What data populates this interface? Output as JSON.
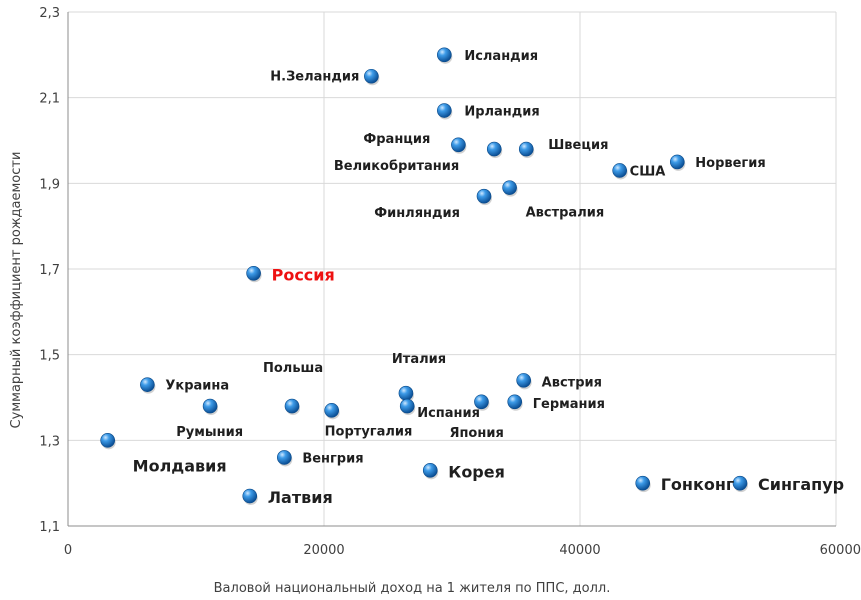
{
  "chart_data": {
    "type": "scatter",
    "title": "",
    "xlabel": "Валовой национальный доход на 1 жителя по ППС, долл.",
    "ylabel": "Суммарный коэффициент рождаемости",
    "xlim": [
      0,
      60000
    ],
    "ylim": [
      1.1,
      2.3
    ],
    "x_ticks": [
      "0",
      "20000",
      "40000",
      "60000"
    ],
    "y_ticks": [
      "1,1",
      "1,3",
      "1,5",
      "1,7",
      "1,9",
      "2,1",
      "2,3"
    ],
    "grid": true,
    "marker_color": "#1a73c8",
    "highlight_color": "#ee1111",
    "points": [
      {
        "label": "Исландия",
        "x": 29400,
        "y": 2.2
      },
      {
        "label": "Н.Зеландия",
        "x": 23700,
        "y": 2.15
      },
      {
        "label": "Ирландия",
        "x": 29400,
        "y": 2.07
      },
      {
        "label": "Франция",
        "x": 30500,
        "y": 1.99
      },
      {
        "label": "Швеция",
        "x": 35800,
        "y": 1.98
      },
      {
        "label": "Великобритания",
        "x": 33300,
        "y": 1.98
      },
      {
        "label": "США",
        "x": 43100,
        "y": 1.93
      },
      {
        "label": "Норвегия",
        "x": 47600,
        "y": 1.95
      },
      {
        "label": "Австралия",
        "x": 34500,
        "y": 1.89
      },
      {
        "label": "Финляндия",
        "x": 32500,
        "y": 1.87
      },
      {
        "label": "Россия",
        "x": 14500,
        "y": 1.69,
        "highlight": true
      },
      {
        "label": "Украина",
        "x": 6200,
        "y": 1.43
      },
      {
        "label": "Румыния",
        "x": 11100,
        "y": 1.38
      },
      {
        "label": "Польша",
        "x": 17500,
        "y": 1.38
      },
      {
        "label": "Португалия",
        "x": 20600,
        "y": 1.37
      },
      {
        "label": "Италия",
        "x": 26400,
        "y": 1.41
      },
      {
        "label": "Испания",
        "x": 26500,
        "y": 1.38
      },
      {
        "label": "Австрия",
        "x": 35600,
        "y": 1.44
      },
      {
        "label": "Германия",
        "x": 34900,
        "y": 1.39
      },
      {
        "label": "Япония",
        "x": 32300,
        "y": 1.39
      },
      {
        "label": "Молдавия",
        "x": 3100,
        "y": 1.3
      },
      {
        "label": "Венгрия",
        "x": 16900,
        "y": 1.26
      },
      {
        "label": "Корея",
        "x": 28300,
        "y": 1.23
      },
      {
        "label": "Латвия",
        "x": 14200,
        "y": 1.17
      },
      {
        "label": "Гонконг",
        "x": 44900,
        "y": 1.2
      },
      {
        "label": "Сингапур",
        "x": 52500,
        "y": 1.2
      }
    ]
  }
}
